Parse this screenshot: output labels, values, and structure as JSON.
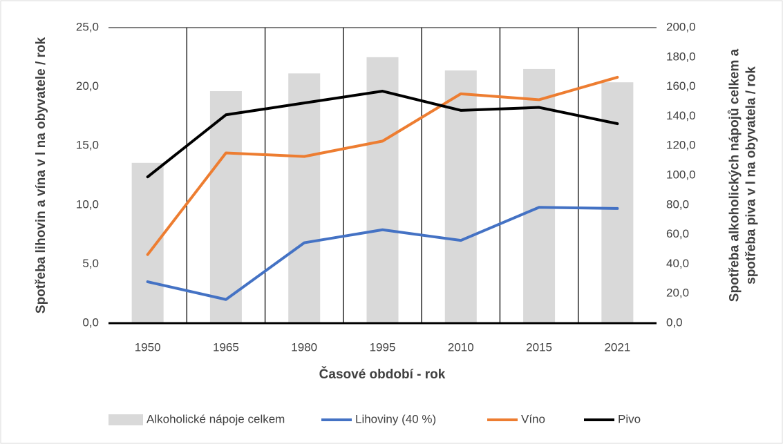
{
  "chart_data": {
    "type": "combo",
    "categories": [
      "1950",
      "1965",
      "1980",
      "1995",
      "2010",
      "2015",
      "2021"
    ],
    "x_label": "Časové období - rok",
    "y_label": "Spotřeba lihovin a vína v l na obyvatele / rok",
    "y2_label": "Spotřeba alkoholických nápojů celkem a spotřeba piva v l na obyvatela / rok",
    "ylim": [
      0,
      25
    ],
    "yticks": [
      {
        "value": 0,
        "label": "0,0"
      },
      {
        "value": 5,
        "label": "5,0"
      },
      {
        "value": 10,
        "label": "10,0"
      },
      {
        "value": 15,
        "label": "15,0"
      },
      {
        "value": 20,
        "label": "20,0"
      },
      {
        "value": 25,
        "label": "25,0"
      }
    ],
    "y2lim": [
      0,
      200
    ],
    "y2ticks": [
      {
        "value": 0,
        "label": "0,0"
      },
      {
        "value": 20,
        "label": "20,0"
      },
      {
        "value": 40,
        "label": "40,0"
      },
      {
        "value": 60,
        "label": "60,0"
      },
      {
        "value": 80,
        "label": "80,0"
      },
      {
        "value": 100,
        "label": "100,0"
      },
      {
        "value": 120,
        "label": "120,0"
      },
      {
        "value": 140,
        "label": "140,0"
      },
      {
        "value": 160,
        "label": "160,0"
      },
      {
        "value": 180,
        "label": "180,0"
      },
      {
        "value": 200,
        "label": "200,0"
      }
    ],
    "series": [
      {
        "name": "Alkoholické nápoje celkem",
        "type": "bar",
        "axis": "y2",
        "color": "#d9d9d9",
        "values": [
          108.5,
          157,
          169,
          180,
          171,
          172,
          163
        ]
      },
      {
        "name": "Lihoviny (40 %)",
        "type": "line",
        "color": "#4472c4",
        "values": [
          3.5,
          2.0,
          6.8,
          7.9,
          7.0,
          9.8,
          9.7
        ]
      },
      {
        "name": "Víno",
        "type": "line",
        "color": "#ed7d31",
        "values": [
          5.8,
          14.4,
          14.1,
          15.4,
          19.4,
          18.9,
          20.8
        ]
      },
      {
        "name": "Pivo",
        "type": "line",
        "axis": "y2",
        "color": "#000000",
        "values": [
          99,
          141,
          149,
          157,
          144,
          146,
          135
        ]
      }
    ]
  }
}
